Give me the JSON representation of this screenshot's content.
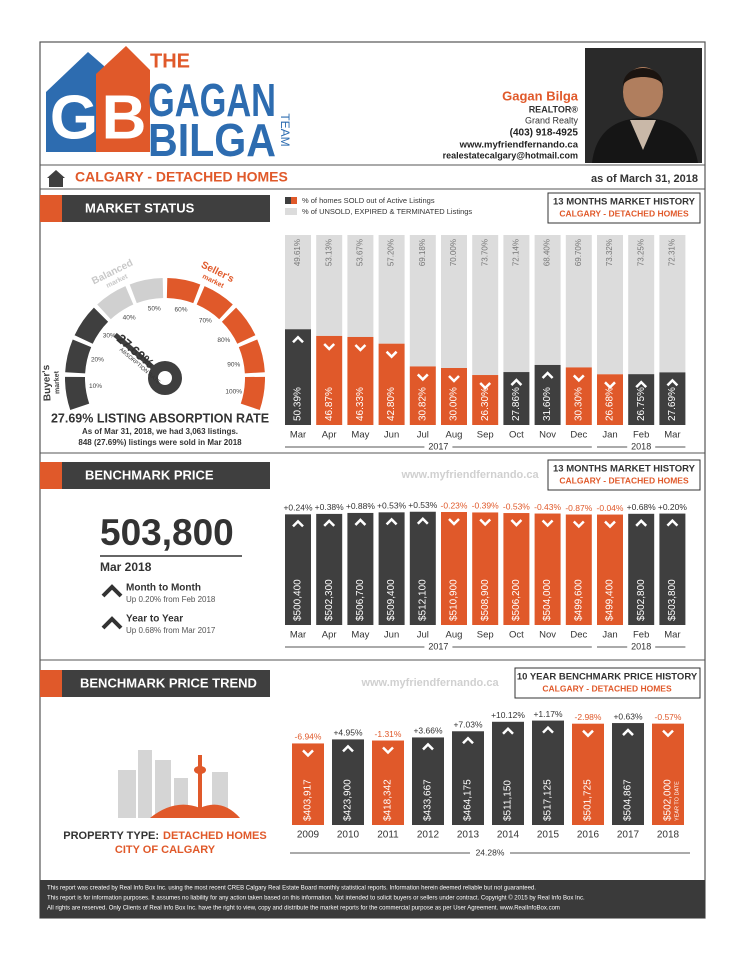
{
  "header": {
    "logo": {
      "monogram": [
        "G",
        "B"
      ],
      "the": "THE",
      "first": "GAGAN",
      "last": "BILGA",
      "team": "TEAM"
    },
    "agent": {
      "name": "Gagan Bilga",
      "title": "REALTOR®",
      "brokerage": "Grand Realty",
      "phone": "(403) 918-4925",
      "website": "www.myfriendfernando.ca",
      "email": "realestatecalgary@hotmail.com"
    }
  },
  "location_bar": {
    "title": "CALGARY - DETACHED HOMES",
    "date": "as of March 31, 2018"
  },
  "market_status": {
    "heading": "MARKET STATUS",
    "history_title": "13 MONTHS MARKET HISTORY",
    "history_subtitle": "CALGARY - DETACHED HOMES",
    "gauge": {
      "value": 27.69,
      "value_label": "27.69%",
      "label": "ABSORPTION RATE",
      "ticks": [
        {
          "value": 10,
          "label": "10%"
        },
        {
          "value": 20,
          "label": "20%"
        },
        {
          "value": 30,
          "label": "30%"
        },
        {
          "value": 40,
          "label": "40%"
        },
        {
          "value": 50,
          "label": "50%"
        },
        {
          "value": 60,
          "label": "60%"
        },
        {
          "value": 70,
          "label": "70%"
        },
        {
          "value": 80,
          "label": "80%"
        },
        {
          "value": 90,
          "label": "90%"
        },
        {
          "value": 100,
          "label": "100%"
        }
      ],
      "zones": [
        [
          "Buyer's",
          "market"
        ],
        [
          "Balanced",
          "market"
        ],
        [
          "Seller's",
          "market"
        ]
      ]
    },
    "summary_title": "27.69% LISTING ABSORPTION RATE",
    "summary": [
      "As of Mar 31, 2018, we had 3,063 listings.",
      "848 (27.69%) listings were sold in Mar 2018"
    ]
  },
  "benchmark_price": {
    "heading": "BENCHMARK PRICE",
    "watermark": "www.myfriendfernando.ca",
    "history_title": "13 MONTHS MARKET HISTORY",
    "history_subtitle": "CALGARY - DETACHED HOMES",
    "price": "503,800",
    "period": "Mar 2018",
    "month_title": "Month to Month",
    "month_text": "Up 0.20% from Feb 2018",
    "year_title": "Year to Year",
    "year_text": "Up 0.68% from Mar 2017"
  },
  "price_trend": {
    "heading": "BENCHMARK PRICE TREND",
    "watermark": "www.myfriendfernando.ca",
    "history_title": "10 YEAR BENCHMARK PRICE HISTORY",
    "history_subtitle": "CALGARY - DETACHED HOMES",
    "property_label": "PROPERTY TYPE:",
    "property_type": "DETACHED HOMES",
    "city": "CITY OF CALGARY"
  },
  "chart_data": [
    {
      "type": "stacked_bar",
      "categories": [
        "Mar",
        "Apr",
        "May",
        "Jun",
        "Jul",
        "Aug",
        "Sep",
        "Oct",
        "Nov",
        "Dec",
        "Jan",
        "Feb",
        "Mar"
      ],
      "groups": [
        {
          "label": "2017",
          "count": 10
        },
        {
          "label": "2018",
          "count": 3
        }
      ],
      "ylim": [
        0,
        100
      ],
      "series": [
        {
          "name": "% of homes SOLD out of Active Listings",
          "color": "#3f3f3f",
          "colors": [
            "#3f3f3f",
            "#e0592a",
            "#e0592a",
            "#e0592a",
            "#e0592a",
            "#e0592a",
            "#e0592a",
            "#3f3f3f",
            "#3f3f3f",
            "#e0592a",
            "#e0592a",
            "#3f3f3f",
            "#3f3f3f"
          ],
          "values": [
            50.39,
            46.87,
            46.33,
            42.8,
            30.82,
            30.0,
            26.3,
            27.86,
            31.6,
            30.3,
            26.68,
            26.75,
            27.69
          ],
          "value_labels": [
            "50.39%",
            "46.87%",
            "46.33%",
            "42.80%",
            "30.82%",
            "30.00%",
            "26.30%",
            "27.86%",
            "31.60%",
            "30.30%",
            "26.68%",
            "26.75%",
            "27.69%"
          ]
        },
        {
          "name": "% of UNSOLD, EXPIRED & TERMINATED Listings",
          "color": "#dcdcdc",
          "values": [
            49.61,
            53.13,
            53.67,
            57.2,
            69.18,
            70.0,
            73.7,
            72.14,
            68.4,
            69.7,
            73.32,
            73.25,
            72.31
          ],
          "value_labels": [
            "49.61%",
            "53.13%",
            "53.67%",
            "57.20%",
            "69.18%",
            "70.00%",
            "73.70%",
            "72.14%",
            "68.40%",
            "69.70%",
            "73.32%",
            "73.25%",
            "72.31%"
          ]
        }
      ]
    },
    {
      "type": "bar",
      "categories": [
        "Mar",
        "Apr",
        "May",
        "Jun",
        "Jul",
        "Aug",
        "Sep",
        "Oct",
        "Nov",
        "Dec",
        "Jan",
        "Feb",
        "Mar"
      ],
      "groups": [
        {
          "label": "2017",
          "count": 10
        },
        {
          "label": "2018",
          "count": 3
        }
      ],
      "ylim": [
        0,
        520000
      ],
      "colors": [
        "#3f3f3f",
        "#3f3f3f",
        "#3f3f3f",
        "#3f3f3f",
        "#3f3f3f",
        "#e0592a",
        "#e0592a",
        "#e0592a",
        "#e0592a",
        "#e0592a",
        "#e0592a",
        "#3f3f3f",
        "#3f3f3f"
      ],
      "values": [
        500400,
        502300,
        506700,
        509400,
        512100,
        510900,
        508900,
        506200,
        504000,
        499600,
        499400,
        502800,
        503800
      ],
      "value_labels": [
        "$500,400",
        "$502,300",
        "$506,700",
        "$509,400",
        "$512,100",
        "$510,900",
        "$508,900",
        "$506,200",
        "$504,000",
        "$499,600",
        "$499,400",
        "$502,800",
        "$503,800"
      ],
      "changes": [
        0.24,
        0.38,
        0.88,
        0.53,
        0.53,
        -0.23,
        -0.39,
        -0.53,
        -0.43,
        -0.87,
        -0.04,
        0.68,
        0.2
      ],
      "change_labels": [
        "+0.24%",
        "+0.38%",
        "+0.88%",
        "+0.53%",
        "+0.53%",
        "-0.23%",
        "-0.39%",
        "-0.53%",
        "-0.43%",
        "-0.87%",
        "-0.04%",
        "+0.68%",
        "+0.20%"
      ]
    },
    {
      "type": "bar",
      "categories": [
        "2009",
        "2010",
        "2011",
        "2012",
        "2013",
        "2014",
        "2015",
        "2016",
        "2017",
        "2018"
      ],
      "ylim": [
        0,
        520000
      ],
      "colors": [
        "#e0592a",
        "#3f3f3f",
        "#e0592a",
        "#3f3f3f",
        "#3f3f3f",
        "#3f3f3f",
        "#3f3f3f",
        "#e0592a",
        "#3f3f3f",
        "#e0592a"
      ],
      "values": [
        403917,
        423900,
        418342,
        433667,
        464175,
        511150,
        517125,
        501725,
        504867,
        502000
      ],
      "value_labels": [
        "$403,917",
        "$423,900",
        "$418,342",
        "$433,667",
        "$464,175",
        "$511,150",
        "$517,125",
        "$501,725",
        "$504,867",
        "$502,000"
      ],
      "changes": [
        -6.94,
        4.95,
        -1.31,
        3.66,
        7.03,
        10.12,
        1.17,
        -2.98,
        0.63,
        -0.57
      ],
      "change_labels": [
        "-6.94%",
        "+4.95%",
        "-1.31%",
        "+3.66%",
        "+7.03%",
        "+10.12%",
        "+1.17%",
        "-2.98%",
        "+0.63%",
        "-0.57%"
      ],
      "bar_note": "YEAR TO DATE",
      "total_change": 24.28,
      "total_change_label": "24.28%"
    }
  ],
  "footer": [
    "This report was created by Real Info Box Inc. using the most recent CREB Calgary Real Estate Board monthly statistical reports. Information herein deemed reliable but not guaranteed.",
    "This report is for information purposes. It assumes no liability for any action taken based on this information. Not intended to solicit buyers or sellers under contract. Copyright © 2015 by Real Info Box Inc.",
    "All rights are reserved. Only Clients of Real Info Box Inc. have the right to view, copy and distribute the market reports for the commercial purpose as per User Agreement. www.RealInfoBox.com"
  ]
}
